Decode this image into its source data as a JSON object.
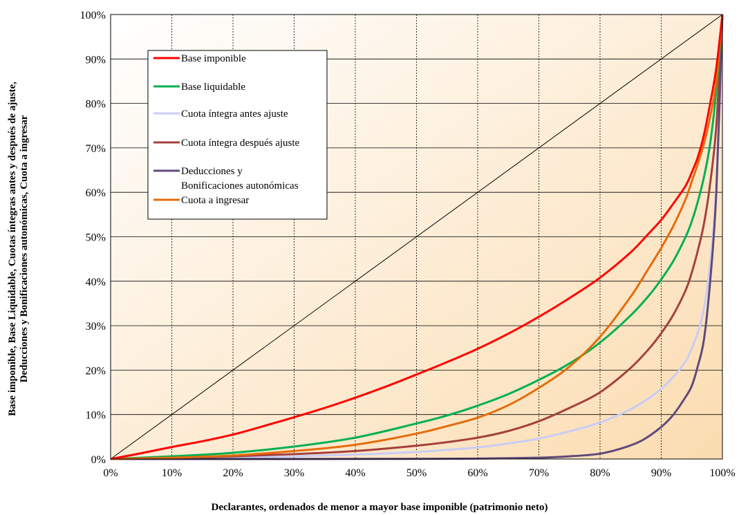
{
  "chart_data": {
    "type": "line",
    "title": "",
    "xlabel": "Declarantes, ordenados de menor a mayor base imponible (patrimonio neto)",
    "ylabel_lines": [
      "Base imponible, Base Liquidable, Cuotas íntegras antes y después de ajuste,",
      "Deducciones y Bonificaciones autonómicas, Cuota a ingresar"
    ],
    "xlim": [
      0,
      100
    ],
    "ylim": [
      0,
      100
    ],
    "x_ticks": [
      "0%",
      "10%",
      "20%",
      "30%",
      "40%",
      "50%",
      "60%",
      "70%",
      "80%",
      "90%",
      "100%"
    ],
    "y_ticks": [
      "0%",
      "10%",
      "20%",
      "30%",
      "40%",
      "50%",
      "60%",
      "70%",
      "80%",
      "90%",
      "100%"
    ],
    "grid": true,
    "legend_position": "top-left",
    "background_gradient": [
      "#ffffff",
      "#fbdcb0"
    ],
    "equality_line": {
      "x": [
        0,
        100
      ],
      "y": [
        0,
        100
      ],
      "color": "#000000"
    },
    "series": [
      {
        "name": "Base imponible",
        "color": "#ff0000",
        "x": [
          0,
          5,
          10,
          15,
          20,
          25,
          30,
          35,
          40,
          45,
          50,
          55,
          60,
          65,
          70,
          75,
          80,
          85,
          88,
          90,
          92,
          94,
          95,
          96,
          97,
          98,
          99,
          100
        ],
        "y": [
          0,
          1.3,
          2.7,
          4,
          5.5,
          7.4,
          9.4,
          11.5,
          13.8,
          16.3,
          19,
          21.8,
          24.8,
          28.2,
          32,
          36.2,
          40.8,
          46.5,
          50.8,
          53.8,
          57.5,
          61.5,
          64.5,
          68,
          73,
          80,
          88,
          100
        ]
      },
      {
        "name": "Base liquidable",
        "color": "#00b050",
        "x": [
          0,
          10,
          20,
          30,
          40,
          50,
          55,
          60,
          65,
          70,
          75,
          80,
          85,
          88,
          90,
          92,
          94,
          95,
          96,
          97,
          98,
          99,
          100
        ],
        "y": [
          0,
          0.6,
          1.4,
          2.8,
          4.8,
          8,
          9.8,
          12,
          14.6,
          17.8,
          21.5,
          26.2,
          32.3,
          36.8,
          40.4,
          44.6,
          50,
          53.5,
          58,
          63.5,
          71,
          83,
          100
        ]
      },
      {
        "name": "Cuota íntegra antes ajuste",
        "color": "#c9cdf5",
        "x": [
          0,
          20,
          40,
          50,
          60,
          65,
          70,
          75,
          80,
          85,
          88,
          90,
          92,
          94,
          95,
          96,
          97,
          98,
          99,
          100
        ],
        "y": [
          0,
          0.3,
          1,
          1.6,
          2.6,
          3.5,
          4.6,
          6.2,
          8.2,
          11.2,
          13.7,
          15.8,
          18.5,
          22,
          25,
          28.5,
          34,
          44,
          62,
          100
        ]
      },
      {
        "name": "Cuota íntegra después ajuste",
        "color": "#a5403c",
        "x": [
          0,
          10,
          20,
          30,
          40,
          50,
          55,
          60,
          65,
          70,
          75,
          80,
          85,
          88,
          90,
          92,
          94,
          95,
          96,
          97,
          98,
          99,
          100
        ],
        "y": [
          0,
          0.2,
          0.6,
          1.1,
          1.8,
          3,
          3.8,
          4.8,
          6.3,
          8.5,
          11.5,
          15,
          20.5,
          24.8,
          28.3,
          32.5,
          38,
          42,
          47,
          53,
          62,
          75,
          100
        ]
      },
      {
        "name": "Deducciones y Bonificaciones autonómicas",
        "color": "#60497a",
        "x": [
          0,
          30,
          50,
          60,
          70,
          75,
          80,
          84,
          87,
          90,
          92,
          94,
          95,
          96,
          97,
          98,
          99,
          100
        ],
        "y": [
          0,
          0,
          0.05,
          0.1,
          0.3,
          0.6,
          1.2,
          2.6,
          4.3,
          7.2,
          10,
          14,
          16.5,
          21,
          27,
          40,
          60,
          100
        ]
      },
      {
        "name": "Cuota a ingresar",
        "color": "#e46c0a",
        "x": [
          0,
          10,
          20,
          30,
          40,
          50,
          55,
          60,
          65,
          70,
          75,
          80,
          85,
          88,
          90,
          92,
          94,
          95,
          96,
          97,
          98,
          99,
          100
        ],
        "y": [
          0,
          0.3,
          0.8,
          1.8,
          3.2,
          5.7,
          7.4,
          9.3,
          12.1,
          16,
          20.8,
          27.5,
          36.5,
          43,
          47.5,
          52.5,
          58.5,
          62.5,
          66.5,
          71,
          77,
          85,
          100
        ]
      }
    ],
    "legend_labels": [
      {
        "series": 0,
        "lines": [
          "Base imponible"
        ]
      },
      {
        "series": 1,
        "lines": [
          "Base liquidable"
        ]
      },
      {
        "series": 2,
        "lines": [
          "Cuota íntegra antes ajuste"
        ]
      },
      {
        "series": 3,
        "lines": [
          "Cuota íntegra después ajuste"
        ]
      },
      {
        "series": 4,
        "lines": [
          "Deducciones y",
          "Bonificaciones autonómicas"
        ]
      },
      {
        "series": 5,
        "lines": [
          "Cuota a ingresar"
        ]
      }
    ]
  }
}
